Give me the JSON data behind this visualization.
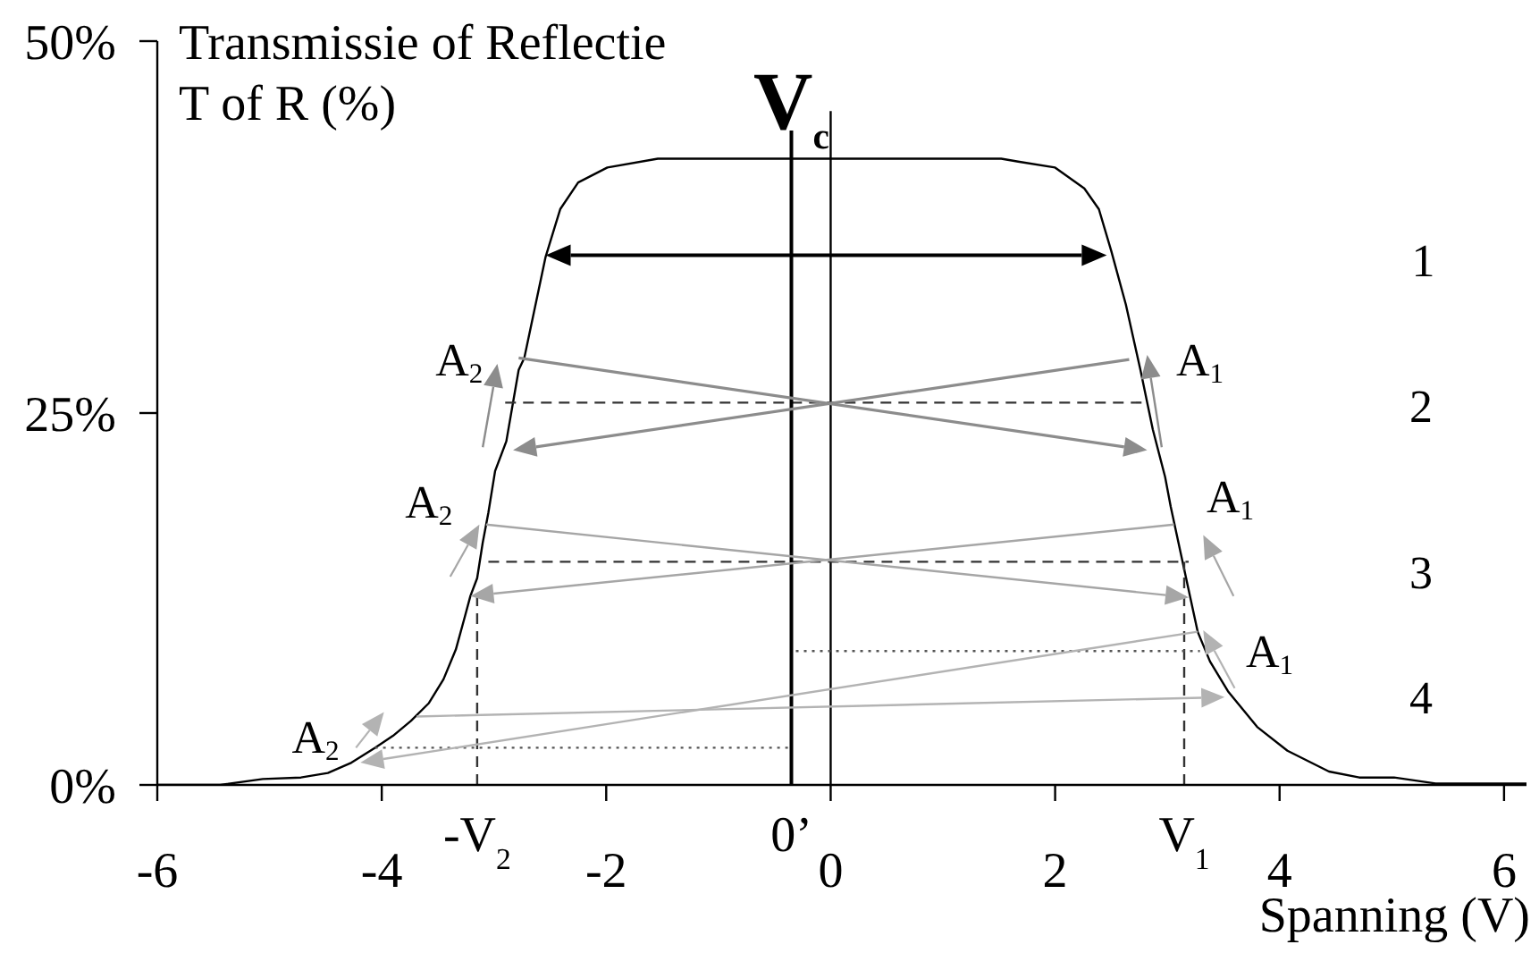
{
  "chart_data": {
    "type": "line",
    "xlabel": "Spanning (V)",
    "ylabel": "Transmissie of Reflectie\nT of R (%)",
    "xlim": [
      -6,
      6.2
    ],
    "xticks": [
      -6,
      -4,
      -2,
      0,
      2,
      4,
      6
    ],
    "ylim": [
      0,
      50
    ],
    "yticks": [
      {
        "value": 0,
        "label": "0%"
      },
      {
        "value": 25,
        "label": "25%"
      },
      {
        "value": 50,
        "label": "50%"
      }
    ],
    "series": [
      {
        "color": "#000000",
        "x": [
          -6,
          -5.44,
          -5.06,
          -4.72,
          -4.48,
          -4.27,
          -4.06,
          -3.9,
          -3.74,
          -3.58,
          -3.45,
          -3.34,
          -3.26,
          -3.21,
          -3.15,
          -3.1,
          -3.05,
          -2.99,
          -2.89,
          -2.78,
          -2.73,
          -2.54,
          -2.41,
          -2.25,
          -1.99,
          -1.54,
          1.52,
          1.67,
          2.0,
          2.26,
          2.39,
          2.5,
          2.63,
          2.76,
          2.87,
          2.98,
          3.03,
          3.11,
          3.19,
          3.27,
          3.38,
          3.54,
          3.8,
          4.07,
          4.44,
          4.71,
          5.02,
          5.39,
          6.2
        ],
        "values": [
          0,
          0,
          0.4,
          0.5,
          0.8,
          1.5,
          2.5,
          3.3,
          4.3,
          5.5,
          7.1,
          9.1,
          11.3,
          12.7,
          13.9,
          16.3,
          18.3,
          21.1,
          23.1,
          27.9,
          28.7,
          35.5,
          38.7,
          40.5,
          41.5,
          42.1,
          42.1,
          41.9,
          41.5,
          40.1,
          38.7,
          35.9,
          32.3,
          27.9,
          23.9,
          20.7,
          18.7,
          15.9,
          13.1,
          10.3,
          8.3,
          6.3,
          3.9,
          2.3,
          0.9,
          0.5,
          0.5,
          0.1,
          0.1
        ]
      },
      {
        "color": "#000000",
        "x": [
          0,
          0
        ],
        "values": [
          0,
          45.3
        ]
      },
      {
        "color": "#333333",
        "line_style": "dashed",
        "x": [
          -2.9,
          2.78
        ],
        "values": [
          25.7,
          25.7
        ]
      },
      {
        "color": "#333333",
        "line_style": "dashed",
        "x": [
          -3.05,
          3.19
        ],
        "values": [
          15.0,
          15.0
        ]
      },
      {
        "color": "#333333",
        "line_style": "dashed",
        "x": [
          -3.15,
          -3.15
        ],
        "values": [
          0,
          12.7
        ]
      },
      {
        "color": "#333333",
        "line_style": "dashed",
        "x": [
          3.15,
          3.15
        ],
        "values": [
          0,
          15.0
        ]
      },
      {
        "color": "#555555",
        "line_style": "dotted",
        "x": [
          -0.31,
          3.29
        ],
        "values": [
          9.0,
          9.0
        ]
      },
      {
        "color": "#555555",
        "line_style": "dotted",
        "x": [
          -4.06,
          -0.37
        ],
        "values": [
          2.5,
          2.5
        ]
      }
    ],
    "ref_lines": [
      {
        "axis": "x",
        "value": -0.35,
        "label": "V$_{c}$",
        "color": "#000000"
      }
    ],
    "annotations": [
      {
        "text": "-V$_{2}$",
        "x": -3.15,
        "y": 0
      },
      {
        "text": "0’",
        "x": -0.35,
        "y": 0
      },
      {
        "text": "V$_{1}$",
        "x": 3.15,
        "y": 0
      },
      "1",
      {
        "text": "A$_{2}$",
        "x": -2.78,
        "y": 27.9
      },
      {
        "text": "A$_{1}$",
        "x": 2.76,
        "y": 27.9
      },
      "2",
      {
        "text": "A$_{2}$",
        "x": -3.05,
        "y": 18.3
      },
      {
        "text": "A$_{1}$",
        "x": 3.03,
        "y": 18.7
      },
      "3",
      {
        "text": "A$_{1}$",
        "x": 3.38,
        "y": 8.3
      },
      "4",
      {
        "text": "A$_{2}$",
        "x": -4.06,
        "y": 2.5
      }
    ]
  }
}
